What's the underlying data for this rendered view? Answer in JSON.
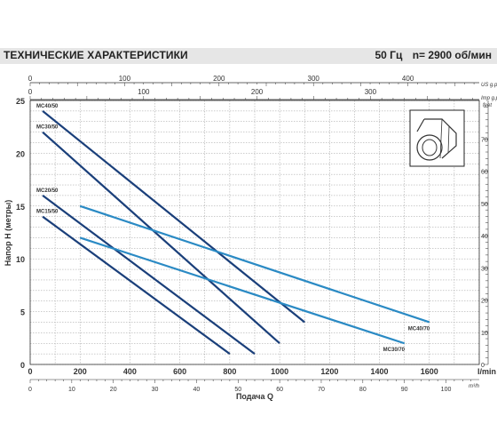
{
  "header": {
    "title": "ТЕХНИЧЕСКИЕ ХАРАКТЕРИСТИКИ",
    "frequency": "50 Гц",
    "speed": "n= 2900 об/мин"
  },
  "colors": {
    "dark_curve": "#1a3f7a",
    "light_curve": "#2a8ac4",
    "grid": "#9a9a9a",
    "axis": "#333333"
  },
  "icon": "pump-outline-icon",
  "chart_data": {
    "type": "line",
    "xlabel": "Подача Q",
    "xunit": "l/min",
    "ylabel": "Напор H (метры)",
    "yunit_right": "feet",
    "xlim": [
      0,
      1800
    ],
    "ylim": [
      0,
      25
    ],
    "x_ticks": [
      "0",
      "200",
      "400",
      "600",
      "800",
      "1000",
      "1200",
      "1400",
      "1600"
    ],
    "y_ticks": [
      "0",
      "5",
      "10",
      "15",
      "20",
      "25"
    ],
    "grid": true,
    "secondary_axes": {
      "us_gpm": {
        "label": "US g.p.m.",
        "ticks": [
          "0",
          "100",
          "200",
          "300",
          "400"
        ]
      },
      "imp_gpm": {
        "label": "Imp g.p.m.",
        "ticks": [
          "0",
          "100",
          "200",
          "300"
        ]
      },
      "m3h": {
        "label": "m³/h",
        "ticks": [
          "0",
          "10",
          "20",
          "30",
          "40",
          "50",
          "60",
          "70",
          "80",
          "90",
          "100"
        ]
      },
      "feet": {
        "label": "feet",
        "ticks": [
          "0",
          "10",
          "20",
          "30",
          "40",
          "50",
          "60",
          "70"
        ]
      }
    },
    "series": [
      {
        "name": "MC40/50",
        "color": "dark",
        "x": [
          50,
          1100
        ],
        "y": [
          24,
          4
        ]
      },
      {
        "name": "MC30/50",
        "color": "dark",
        "x": [
          50,
          1000
        ],
        "y": [
          22,
          2
        ]
      },
      {
        "name": "MC20/50",
        "color": "dark",
        "x": [
          50,
          900
        ],
        "y": [
          16,
          1
        ]
      },
      {
        "name": "MC15/50",
        "color": "dark",
        "x": [
          50,
          800
        ],
        "y": [
          14,
          1
        ]
      },
      {
        "name": "MC40/70",
        "color": "light",
        "x": [
          200,
          1600
        ],
        "y": [
          15,
          4
        ]
      },
      {
        "name": "MC30/70",
        "color": "light",
        "x": [
          200,
          1500
        ],
        "y": [
          12,
          2
        ]
      }
    ]
  }
}
